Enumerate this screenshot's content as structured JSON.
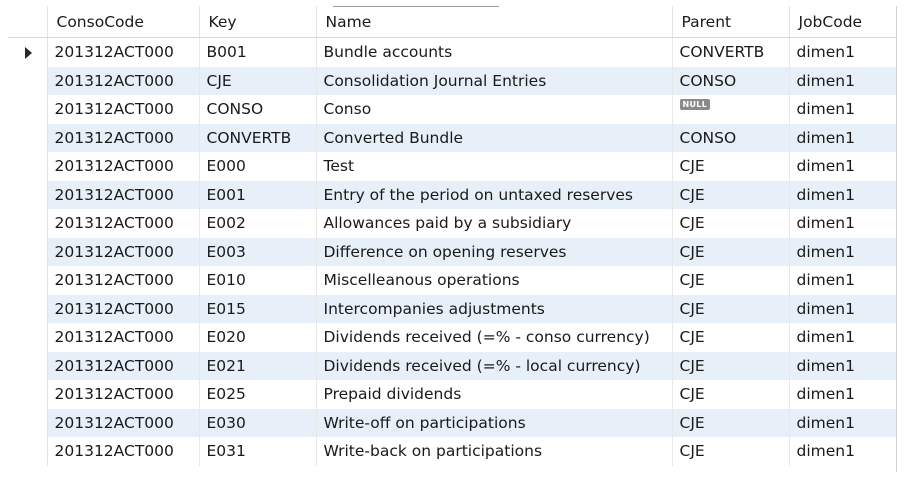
{
  "grid": {
    "columns": [
      "ConsoCode",
      "Key",
      "Name",
      "Parent",
      "JobCode"
    ],
    "null_label": "NULL",
    "alt_row_color": "#e7f0f9",
    "current_row_index": 0,
    "rows": [
      {
        "conso": "201312ACT000",
        "key": "B001",
        "name": "Bundle accounts",
        "parent": "CONVERTB",
        "job": "dimen1"
      },
      {
        "conso": "201312ACT000",
        "key": "CJE",
        "name": "Consolidation Journal Entries",
        "parent": "CONSO",
        "job": "dimen1"
      },
      {
        "conso": "201312ACT000",
        "key": "CONSO",
        "name": "Conso",
        "parent": null,
        "job": "dimen1"
      },
      {
        "conso": "201312ACT000",
        "key": "CONVERTB",
        "name": "Converted Bundle",
        "parent": "CONSO",
        "job": "dimen1"
      },
      {
        "conso": "201312ACT000",
        "key": "E000",
        "name": "Test",
        "parent": "CJE",
        "job": "dimen1"
      },
      {
        "conso": "201312ACT000",
        "key": "E001",
        "name": "Entry of the period on untaxed reserves",
        "parent": "CJE",
        "job": "dimen1"
      },
      {
        "conso": "201312ACT000",
        "key": "E002",
        "name": "Allowances paid by a subsidiary",
        "parent": "CJE",
        "job": "dimen1"
      },
      {
        "conso": "201312ACT000",
        "key": "E003",
        "name": "Difference on opening reserves",
        "parent": "CJE",
        "job": "dimen1"
      },
      {
        "conso": "201312ACT000",
        "key": "E010",
        "name": "Miscelleanous operations",
        "parent": "CJE",
        "job": "dimen1"
      },
      {
        "conso": "201312ACT000",
        "key": "E015",
        "name": "Intercompanies adjustments",
        "parent": "CJE",
        "job": "dimen1"
      },
      {
        "conso": "201312ACT000",
        "key": "E020",
        "name": "Dividends received (=% - conso currency)",
        "parent": "CJE",
        "job": "dimen1"
      },
      {
        "conso": "201312ACT000",
        "key": "E021",
        "name": "Dividends received (=% - local currency)",
        "parent": "CJE",
        "job": "dimen1"
      },
      {
        "conso": "201312ACT000",
        "key": "E025",
        "name": "Prepaid dividends",
        "parent": "CJE",
        "job": "dimen1"
      },
      {
        "conso": "201312ACT000",
        "key": "E030",
        "name": "Write-off on participations",
        "parent": "CJE",
        "job": "dimen1"
      },
      {
        "conso": "201312ACT000",
        "key": "E031",
        "name": "Write-back on participations",
        "parent": "CJE",
        "job": "dimen1"
      }
    ]
  }
}
